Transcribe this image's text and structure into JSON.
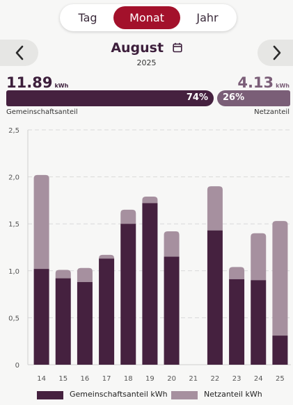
{
  "tabs": [
    {
      "label": "Tag",
      "active": false
    },
    {
      "label": "Monat",
      "active": true
    },
    {
      "label": "Jahr",
      "active": false
    }
  ],
  "header": {
    "title": "August",
    "year": "2025"
  },
  "summary": {
    "left_value": "11.89",
    "left_unit": "kWh",
    "left_percent": "74%",
    "left_label": "Gemeinschaftsanteil",
    "right_value": "4.13",
    "right_unit": "kWh",
    "right_percent": "26%",
    "right_label": "Netzanteil"
  },
  "colors": {
    "accent": "#a3112b",
    "community": "#45213f",
    "grid": "#a6909f"
  },
  "chart_data": {
    "type": "bar",
    "stacked": true,
    "categories": [
      "14",
      "15",
      "16",
      "17",
      "18",
      "19",
      "20",
      "21",
      "22",
      "23",
      "24",
      "25"
    ],
    "series": [
      {
        "name": "Gemeinschaftsanteil kWh",
        "values": [
          1.02,
          0.92,
          0.88,
          1.13,
          1.5,
          1.72,
          1.15,
          0,
          1.43,
          0.91,
          0.9,
          0.31
        ]
      },
      {
        "name": "Netzanteil kWh",
        "values": [
          1.0,
          0.09,
          0.15,
          0.04,
          0.15,
          0.07,
          0.27,
          0,
          0.47,
          0.13,
          0.5,
          1.22
        ]
      }
    ],
    "ylim": [
      0,
      2.5
    ],
    "yticks": [
      "0",
      "0,5",
      "1,0",
      "1,5",
      "2,0",
      "2,5"
    ],
    "grid": true,
    "legend": "bottom"
  }
}
